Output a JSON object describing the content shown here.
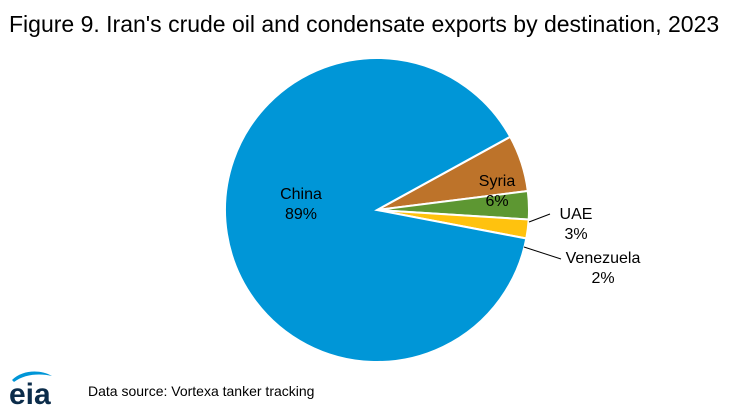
{
  "title": "Figure 9. Iran's crude oil and condensate exports by destination, 2023",
  "source": "Data source: Vortexa tanker tracking",
  "logo_text": "eia",
  "colors": {
    "China": "#0096D7",
    "Syria": "#BD732A",
    "UAE": "#5D9732",
    "Venezuela": "#FFC20E",
    "logo_blue": "#0096D7"
  },
  "chart_data": {
    "type": "pie",
    "title": "Figure 9. Iran's crude oil and condensate exports by destination, 2023",
    "slices": [
      {
        "name": "China",
        "value": 89,
        "label": "89%"
      },
      {
        "name": "Syria",
        "value": 6,
        "label": "6%"
      },
      {
        "name": "UAE",
        "value": 3,
        "label": "3%"
      },
      {
        "name": "Venezuela",
        "value": 2,
        "label": "2%"
      }
    ]
  }
}
